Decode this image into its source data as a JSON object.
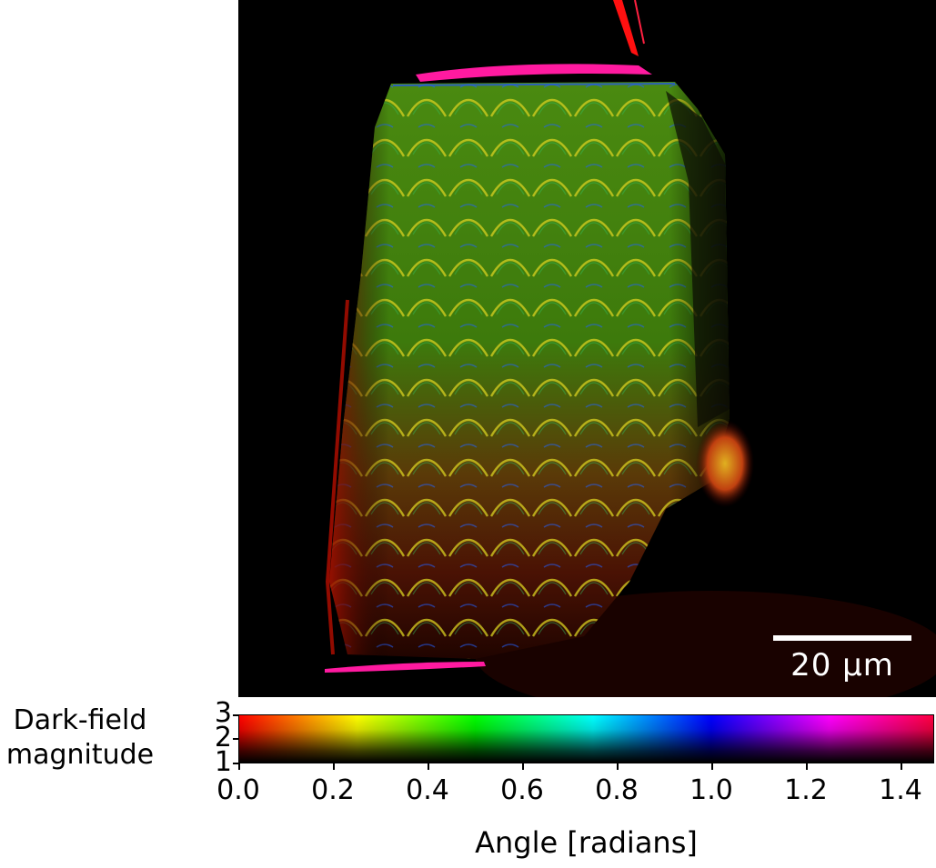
{
  "image": {
    "description_name": "dark-field-micrograph",
    "scale_bar_label": "20 μm"
  },
  "colorbar": {
    "ylabel_line1": "Dark-field",
    "ylabel_line2": "magnitude",
    "yticks": [
      "3",
      "2",
      "1"
    ],
    "xticks": [
      "0.0",
      "0.2",
      "0.4",
      "0.6",
      "0.8",
      "1.0",
      "1.2",
      "1.4"
    ],
    "xlabel": "Angle [radians]",
    "hue_colors": [
      "#ff0000",
      "#ffff00",
      "#00ff00",
      "#00ffff",
      "#0000ff",
      "#ff00ff",
      "#ff0040"
    ]
  }
}
